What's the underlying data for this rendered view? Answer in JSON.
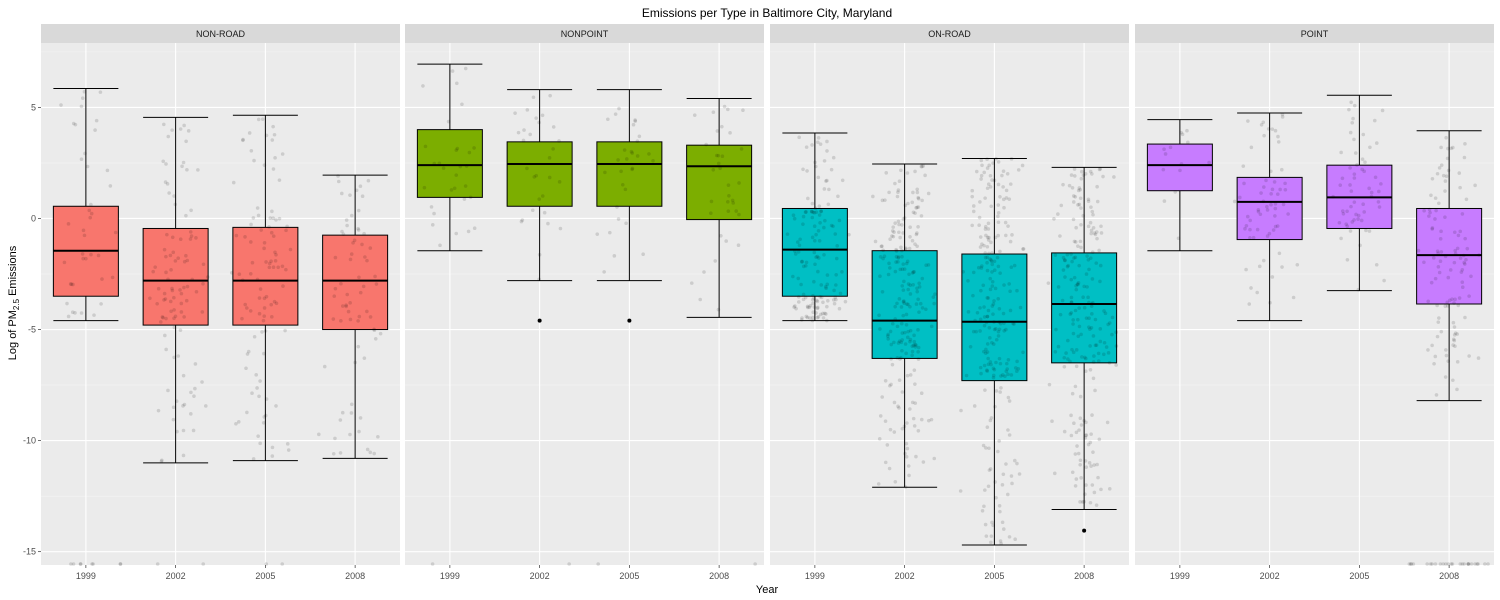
{
  "chart_data": {
    "type": "boxplot",
    "title": "Emissions per Type in Baltimore City, Maryland",
    "xlabel": "Year",
    "ylabel": "Log of PM2.5 Emissions",
    "ylabel_parts": {
      "pre": "Log of PM",
      "sub": "2.5",
      "post": " Emissions"
    },
    "ylim": [
      -15.6,
      7.9
    ],
    "yticks": [
      -15,
      -10,
      -5,
      0,
      5
    ],
    "categories": [
      "1999",
      "2002",
      "2005",
      "2008"
    ],
    "colors": {
      "NON-ROAD": "#F8766D",
      "NONPOINT": "#7CAE00",
      "ON-ROAD": "#00BFC4",
      "POINT": "#C77CFF"
    },
    "panels": [
      {
        "name": "NON-ROAD",
        "boxes": [
          {
            "year": "1999",
            "min": -4.6,
            "q1": -3.5,
            "median": -1.45,
            "q3": 0.55,
            "max": 5.85,
            "outliers": [],
            "n_points": 40,
            "floor_points": 8
          },
          {
            "year": "2002",
            "min": -11.0,
            "q1": -4.8,
            "median": -2.8,
            "q3": -0.45,
            "max": 4.55,
            "outliers": [],
            "n_points": 100,
            "floor_points": 2
          },
          {
            "year": "2005",
            "min": -10.9,
            "q1": -4.8,
            "median": -2.8,
            "q3": -0.4,
            "max": 4.65,
            "outliers": [],
            "n_points": 100,
            "floor_points": 2
          },
          {
            "year": "2008",
            "min": -10.8,
            "q1": -5.0,
            "median": -2.8,
            "q3": -0.75,
            "max": 1.95,
            "outliers": [],
            "n_points": 70,
            "floor_points": 0
          }
        ]
      },
      {
        "name": "NONPOINT",
        "boxes": [
          {
            "year": "1999",
            "min": -1.45,
            "q1": 0.95,
            "median": 2.4,
            "q3": 4.0,
            "max": 6.95,
            "outliers": [],
            "n_points": 30,
            "floor_points": 1
          },
          {
            "year": "2002",
            "min": -2.8,
            "q1": 0.55,
            "median": 2.45,
            "q3": 3.45,
            "max": 5.8,
            "outliers": [
              -4.6
            ],
            "n_points": 30,
            "floor_points": 1
          },
          {
            "year": "2005",
            "min": -2.8,
            "q1": 0.55,
            "median": 2.45,
            "q3": 3.45,
            "max": 5.8,
            "outliers": [
              -4.6
            ],
            "n_points": 30,
            "floor_points": 1
          },
          {
            "year": "2008",
            "min": -4.45,
            "q1": -0.05,
            "median": 2.35,
            "q3": 3.3,
            "max": 5.4,
            "outliers": [],
            "n_points": 35,
            "floor_points": 1
          }
        ]
      },
      {
        "name": "ON-ROAD",
        "boxes": [
          {
            "year": "1999",
            "min": -4.6,
            "q1": -3.5,
            "median": -1.4,
            "q3": 0.45,
            "max": 3.85,
            "outliers": [],
            "n_points": 140,
            "floor_points": 0
          },
          {
            "year": "2002",
            "min": -12.1,
            "q1": -6.3,
            "median": -4.6,
            "q3": -1.45,
            "max": 2.45,
            "outliers": [],
            "n_points": 220,
            "floor_points": 0
          },
          {
            "year": "2005",
            "min": -14.7,
            "q1": -7.3,
            "median": -4.65,
            "q3": -1.6,
            "max": 2.7,
            "outliers": [],
            "n_points": 240,
            "floor_points": 0
          },
          {
            "year": "2008",
            "min": -13.1,
            "q1": -6.5,
            "median": -3.85,
            "q3": -1.55,
            "max": 2.3,
            "outliers": [
              -14.05
            ],
            "n_points": 220,
            "floor_points": 0
          }
        ]
      },
      {
        "name": "POINT",
        "boxes": [
          {
            "year": "1999",
            "min": -1.45,
            "q1": 1.25,
            "median": 2.4,
            "q3": 3.35,
            "max": 4.45,
            "outliers": [],
            "n_points": 14,
            "floor_points": 0
          },
          {
            "year": "2002",
            "min": -4.6,
            "q1": -0.95,
            "median": 0.75,
            "q3": 1.85,
            "max": 4.75,
            "outliers": [],
            "n_points": 65,
            "floor_points": 0
          },
          {
            "year": "2005",
            "min": -3.25,
            "q1": -0.45,
            "median": 0.95,
            "q3": 2.4,
            "max": 5.55,
            "outliers": [],
            "n_points": 60,
            "floor_points": 0
          },
          {
            "year": "2008",
            "min": -8.2,
            "q1": -3.85,
            "median": -1.65,
            "q3": 0.45,
            "max": 3.95,
            "outliers": [],
            "n_points": 110,
            "floor_points": 26
          }
        ]
      }
    ]
  }
}
